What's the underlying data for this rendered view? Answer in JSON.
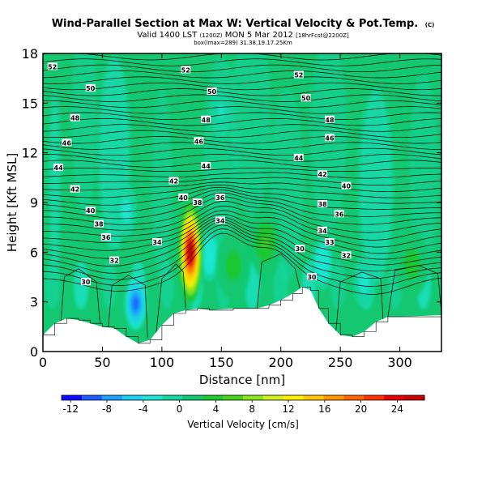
{
  "title": {
    "main": "Wind-Parallel Section at Max W: Vertical Velocity & Pot.Temp.",
    "main_suffix": "(C)",
    "valid_prefix": "Valid 1400 LST",
    "valid_mid": "(1200Z)",
    "valid_main": "MON 5 Mar 2012",
    "valid_suffix": "[18hrFcst@2200Z]",
    "line3": "box(lmax=289) 31.38,19.17.25Km"
  },
  "chart_data": {
    "type": "heatmap",
    "xlabel": "Distance [nm]",
    "ylabel": "Height [Kft MSL]",
    "xlim": [
      0,
      335
    ],
    "ylim": [
      0,
      18
    ],
    "x_ticks": [
      0,
      50,
      100,
      150,
      200,
      250,
      300
    ],
    "y_ticks": [
      0,
      3,
      6,
      9,
      12,
      15,
      18
    ],
    "colorbar": {
      "label": "Vertical Velocity [cm/s]",
      "ticks": [
        -12,
        -8,
        -4,
        0,
        4,
        8,
        12,
        16,
        20,
        24
      ],
      "range": [
        -13,
        27
      ],
      "colors": [
        "#0a0aff",
        "#1a5cff",
        "#1ea0ff",
        "#1ecff0",
        "#1fe6d2",
        "#18d6a0",
        "#13c870",
        "#1ec832",
        "#46d21e",
        "#8ce61e",
        "#d2f01e",
        "#fff000",
        "#ffc800",
        "#ff9600",
        "#ff6400",
        "#ff3200",
        "#e60000",
        "#c80000"
      ]
    },
    "terrain": [
      [
        0,
        1.0
      ],
      [
        10,
        1.7
      ],
      [
        20,
        2.0
      ],
      [
        30,
        1.9
      ],
      [
        40,
        1.7
      ],
      [
        50,
        1.5
      ],
      [
        60,
        1.4
      ],
      [
        70,
        0.9
      ],
      [
        80,
        0.5
      ],
      [
        90,
        0.7
      ],
      [
        100,
        1.6
      ],
      [
        110,
        2.3
      ],
      [
        120,
        2.5
      ],
      [
        130,
        2.6
      ],
      [
        140,
        2.5
      ],
      [
        160,
        2.6
      ],
      [
        180,
        2.6
      ],
      [
        190,
        2.8
      ],
      [
        200,
        3.1
      ],
      [
        210,
        3.5
      ],
      [
        218,
        3.9
      ],
      [
        225,
        3.7
      ],
      [
        232,
        2.6
      ],
      [
        240,
        1.7
      ],
      [
        250,
        1.0
      ],
      [
        260,
        0.9
      ],
      [
        270,
        1.2
      ],
      [
        280,
        1.8
      ],
      [
        290,
        2.1
      ],
      [
        300,
        2.1
      ],
      [
        335,
        2.2
      ]
    ],
    "updrafts": [
      {
        "x": 124,
        "y": 6.0,
        "peak": 26
      },
      {
        "x": 187,
        "y": 6.6,
        "peak": 5
      },
      {
        "x": 160,
        "y": 5.2,
        "peak": 4
      },
      {
        "x": 310,
        "y": 5.3,
        "peak": 4
      }
    ],
    "downdrafts": [
      {
        "x": 78,
        "y": 2.9,
        "peak": -10
      },
      {
        "x": 140,
        "y": 5.8,
        "peak": -4
      },
      {
        "x": 235,
        "y": 5.3,
        "peak": -4
      },
      {
        "x": 70,
        "y": 8.5,
        "peak": -3
      },
      {
        "x": 150,
        "y": 14.5,
        "peak": -2
      },
      {
        "x": 270,
        "y": 4.2,
        "peak": -3
      }
    ],
    "contour_labels": [
      {
        "text": "52",
        "x": 8,
        "y": 17.2
      },
      {
        "text": "50",
        "x": 40,
        "y": 15.9
      },
      {
        "text": "48",
        "x": 27,
        "y": 14.1
      },
      {
        "text": "46",
        "x": 20,
        "y": 12.6
      },
      {
        "text": "44",
        "x": 13,
        "y": 11.1
      },
      {
        "text": "42",
        "x": 27,
        "y": 9.8
      },
      {
        "text": "40",
        "x": 40,
        "y": 8.5
      },
      {
        "text": "38",
        "x": 47,
        "y": 7.7
      },
      {
        "text": "36",
        "x": 53,
        "y": 6.9
      },
      {
        "text": "34",
        "x": 96,
        "y": 6.6
      },
      {
        "text": "32",
        "x": 60,
        "y": 5.5
      },
      {
        "text": "30",
        "x": 36,
        "y": 4.2
      },
      {
        "text": "52",
        "x": 120,
        "y": 17.0
      },
      {
        "text": "50",
        "x": 142,
        "y": 15.7
      },
      {
        "text": "48",
        "x": 137,
        "y": 14.0
      },
      {
        "text": "46",
        "x": 131,
        "y": 12.7
      },
      {
        "text": "44",
        "x": 137,
        "y": 11.2
      },
      {
        "text": "42",
        "x": 110,
        "y": 10.3
      },
      {
        "text": "40",
        "x": 118,
        "y": 9.3
      },
      {
        "text": "38",
        "x": 130,
        "y": 9.0
      },
      {
        "text": "36",
        "x": 149,
        "y": 9.3
      },
      {
        "text": "34",
        "x": 149,
        "y": 7.9
      },
      {
        "text": "52",
        "x": 215,
        "y": 16.7
      },
      {
        "text": "50",
        "x": 221,
        "y": 15.3
      },
      {
        "text": "48",
        "x": 241,
        "y": 14.0
      },
      {
        "text": "46",
        "x": 241,
        "y": 12.9
      },
      {
        "text": "44",
        "x": 215,
        "y": 11.7
      },
      {
        "text": "42",
        "x": 235,
        "y": 10.7
      },
      {
        "text": "40",
        "x": 255,
        "y": 10.0
      },
      {
        "text": "38",
        "x": 235,
        "y": 8.9
      },
      {
        "text": "36",
        "x": 249,
        "y": 8.3
      },
      {
        "text": "34",
        "x": 235,
        "y": 7.3
      },
      {
        "text": "33",
        "x": 241,
        "y": 6.6
      },
      {
        "text": "32",
        "x": 255,
        "y": 5.8
      },
      {
        "text": "30",
        "x": 216,
        "y": 6.2
      },
      {
        "text": "30",
        "x": 226,
        "y": 4.5
      }
    ]
  }
}
